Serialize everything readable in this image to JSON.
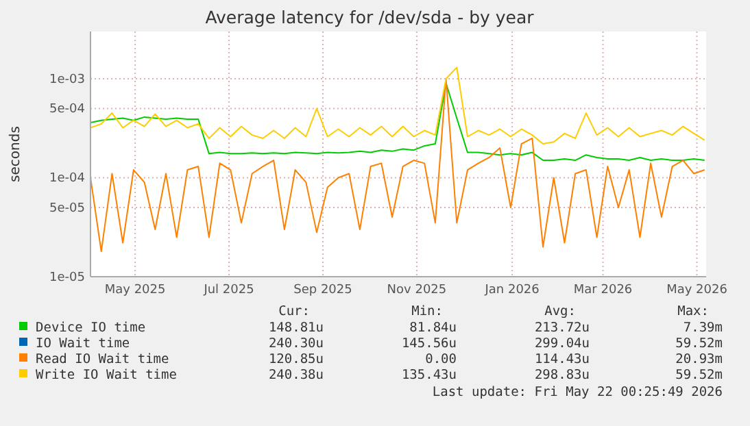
{
  "chart_data": {
    "type": "line",
    "title": "Average latency for /dev/sda - by year",
    "ylabel": "seconds",
    "log": true,
    "grid": true,
    "legend": "bottom",
    "xlim": [
      "2025-04-17",
      "2026-05-22"
    ],
    "xticks": [
      {
        "value": "2025-05-16",
        "label": "May 2025"
      },
      {
        "value": "2025-07-16",
        "label": "Jul 2025"
      },
      {
        "value": "2025-09-15",
        "label": "Sep 2025"
      },
      {
        "value": "2025-11-15",
        "label": "Nov 2025"
      },
      {
        "value": "2026-01-16",
        "label": "Jan 2026"
      },
      {
        "value": "2026-03-16",
        "label": "Mar 2026"
      },
      {
        "value": "2026-05-16",
        "label": "May 2026"
      }
    ],
    "ylim": [
      1e-05,
      0.003
    ],
    "yticks": [
      {
        "value": 1e-05,
        "label": "1e-05"
      },
      {
        "value": 5e-05,
        "label": "5e-05"
      },
      {
        "value": 0.0001,
        "label": "1e-04"
      },
      {
        "value": 0.0005,
        "label": "5e-04"
      },
      {
        "value": 0.001,
        "label": "1e-03"
      }
    ],
    "x": [
      "2025-04-17",
      "2025-04-24",
      "2025-05-01",
      "2025-05-08",
      "2025-05-15",
      "2025-05-22",
      "2025-05-29",
      "2025-06-05",
      "2025-06-12",
      "2025-06-19",
      "2025-06-26",
      "2025-07-03",
      "2025-07-10",
      "2025-07-17",
      "2025-07-24",
      "2025-07-31",
      "2025-08-07",
      "2025-08-14",
      "2025-08-21",
      "2025-08-28",
      "2025-09-04",
      "2025-09-11",
      "2025-09-18",
      "2025-09-25",
      "2025-10-02",
      "2025-10-09",
      "2025-10-16",
      "2025-10-23",
      "2025-10-30",
      "2025-11-06",
      "2025-11-13",
      "2025-11-20",
      "2025-11-27",
      "2025-12-04",
      "2025-12-11",
      "2025-12-18",
      "2025-12-25",
      "2026-01-01",
      "2026-01-08",
      "2026-01-15",
      "2026-01-22",
      "2026-01-29",
      "2026-02-05",
      "2026-02-12",
      "2026-02-19",
      "2026-02-26",
      "2026-03-05",
      "2026-03-12",
      "2026-03-19",
      "2026-03-26",
      "2026-04-02",
      "2026-04-09",
      "2026-04-16",
      "2026-04-23",
      "2026-04-30",
      "2026-05-07",
      "2026-05-14",
      "2026-05-21"
    ],
    "series": [
      {
        "name": "Device IO time",
        "color": "#00cc00",
        "values": [
          0.00036,
          0.00038,
          0.00039,
          0.0004,
          0.00038,
          0.00041,
          0.0004,
          0.00039,
          0.0004,
          0.00039,
          0.00039,
          0.000175,
          0.00018,
          0.000175,
          0.000175,
          0.000178,
          0.000175,
          0.000178,
          0.000175,
          0.00018,
          0.000178,
          0.000175,
          0.00018,
          0.000178,
          0.00018,
          0.000185,
          0.00018,
          0.00019,
          0.000185,
          0.000195,
          0.00019,
          0.00021,
          0.00022,
          0.0009,
          0.0004,
          0.00018,
          0.00018,
          0.000175,
          0.00017,
          0.000175,
          0.00017,
          0.00018,
          0.00015,
          0.00015,
          0.000155,
          0.00015,
          0.00017,
          0.00016,
          0.000155,
          0.000155,
          0.00015,
          0.00016,
          0.00015,
          0.000155,
          0.00015,
          0.00015,
          0.000155,
          0.00015
        ]
      },
      {
        "name": "IO Wait time",
        "color": "#0066b3",
        "values": [
          null,
          null,
          null,
          null,
          null,
          null,
          null,
          null,
          null,
          null,
          null,
          null,
          null,
          null,
          null,
          null,
          null,
          null,
          null,
          null,
          null,
          null,
          null,
          null,
          null,
          null,
          null,
          null,
          null,
          null,
          null,
          null,
          null,
          null,
          null,
          null,
          null,
          null,
          null,
          null,
          null,
          null,
          null,
          null,
          null,
          null,
          null,
          null,
          null,
          null,
          null,
          null,
          null,
          null,
          null,
          null,
          null,
          null
        ]
      },
      {
        "name": "Read IO Wait time",
        "color": "#ff8000",
        "values": [
          0.0001,
          1.8e-05,
          0.00011,
          2.2e-05,
          0.00012,
          9e-05,
          3e-05,
          0.00011,
          2.5e-05,
          0.00012,
          0.00013,
          2.5e-05,
          0.00014,
          0.00012,
          3.5e-05,
          0.00011,
          0.00013,
          0.00015,
          3e-05,
          0.00012,
          9e-05,
          2.8e-05,
          8e-05,
          0.0001,
          0.00011,
          3e-05,
          0.00013,
          0.00014,
          4e-05,
          0.00013,
          0.00015,
          0.00014,
          3.5e-05,
          0.001,
          3.5e-05,
          0.00012,
          0.00014,
          0.00016,
          0.0002,
          5e-05,
          0.00022,
          0.00025,
          2e-05,
          0.0001,
          2.2e-05,
          0.00011,
          0.00012,
          2.5e-05,
          0.00013,
          5e-05,
          0.00012,
          2.5e-05,
          0.00014,
          4e-05,
          0.00013,
          0.00015,
          0.00011,
          0.00012
        ]
      },
      {
        "name": "Write IO Wait time",
        "color": "#ffcc00",
        "values": [
          0.00032,
          0.00035,
          0.00045,
          0.00032,
          0.00038,
          0.00033,
          0.00044,
          0.00033,
          0.00038,
          0.00032,
          0.00035,
          0.00025,
          0.00032,
          0.00026,
          0.00033,
          0.00027,
          0.00025,
          0.0003,
          0.00025,
          0.00032,
          0.00026,
          0.0005,
          0.00026,
          0.00031,
          0.00026,
          0.00032,
          0.00027,
          0.00033,
          0.00026,
          0.00033,
          0.00026,
          0.0003,
          0.00027,
          0.001,
          0.0013,
          0.00026,
          0.0003,
          0.00027,
          0.00031,
          0.00026,
          0.00031,
          0.00027,
          0.00022,
          0.00023,
          0.00028,
          0.00025,
          0.00045,
          0.00027,
          0.00032,
          0.00026,
          0.00032,
          0.00026,
          0.00028,
          0.0003,
          0.00027,
          0.00033,
          0.00028,
          0.00024
        ]
      }
    ],
    "annotations": [
      "Cur:",
      "Min:",
      "Avg:",
      "Max:",
      "148.81u",
      "81.84u",
      "213.72u",
      "7.39m",
      "240.30u",
      "145.56u",
      "299.04u",
      "59.52m",
      "120.85u",
      "0.00",
      "114.43u",
      "20.93m",
      "240.38u",
      "135.43u",
      "298.83u",
      "59.52m",
      "Last update: Fri May 22 00:25:49 2026"
    ]
  }
}
